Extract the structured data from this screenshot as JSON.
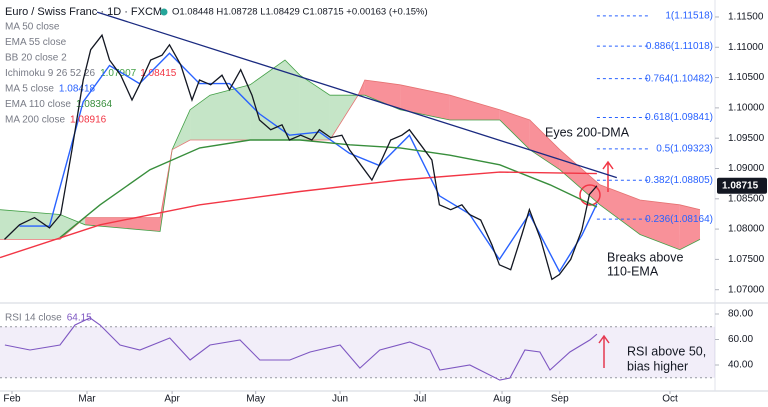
{
  "chart_data": [
    {
      "type": "line",
      "title": "Euro / Swiss Franc · 1D · FXCM",
      "quote_text": "O1.08448 H1.08728 L1.08429 C1.08715 +0.00163 (+0.15%)",
      "last_price": 1.08715,
      "xlim": [
        -3.2,
        187.5
      ],
      "ylim": [
        1.0683,
        1.1178
      ],
      "yticks": [
        {
          "value": 1.115,
          "label": "1.11500"
        },
        {
          "value": 1.11,
          "label": "1.11000"
        },
        {
          "value": 1.105,
          "label": "1.10500"
        },
        {
          "value": 1.1,
          "label": "1.10000"
        },
        {
          "value": 1.095,
          "label": "1.09500"
        },
        {
          "value": 1.09,
          "label": "1.09000"
        },
        {
          "value": 1.085,
          "label": "1.08500"
        },
        {
          "value": 1.08,
          "label": "1.08000"
        },
        {
          "value": 1.075,
          "label": "1.07500"
        },
        {
          "value": 1.07,
          "label": "1.07000"
        }
      ],
      "price": {
        "color": "#131722",
        "x": [
          -2,
          2,
          6,
          10,
          13,
          16,
          19,
          21,
          24,
          26,
          29,
          32,
          34,
          37,
          40,
          42,
          45,
          48,
          50,
          53,
          56,
          58,
          61,
          64,
          66,
          69,
          72,
          74,
          77,
          80,
          82,
          85,
          88,
          90,
          93,
          96,
          98,
          101,
          104,
          106,
          109,
          112,
          114,
          117,
          120,
          122,
          125,
          128,
          130,
          133,
          136,
          138,
          141,
          144,
          146,
          149,
          152,
          154,
          156
        ],
        "values": [
          1.0783,
          1.0807,
          1.0819,
          1.0802,
          1.0824,
          1.0931,
          1.1046,
          1.1096,
          1.112,
          1.1079,
          1.1054,
          1.1013,
          1.1038,
          1.1079,
          1.1087,
          1.1104,
          1.1071,
          1.1013,
          1.1046,
          1.1038,
          1.1054,
          1.103,
          1.1063,
          1.1021,
          1.098,
          1.0964,
          1.0972,
          1.0947,
          1.0955,
          1.0947,
          1.0964,
          1.0951,
          1.0955,
          1.0931,
          1.0906,
          1.0881,
          1.0906,
          1.0947,
          1.0955,
          1.0964,
          1.0939,
          1.0914,
          1.084,
          1.0832,
          1.084,
          1.0824,
          1.0815,
          1.0774,
          1.0741,
          1.0733,
          1.0791,
          1.0832,
          1.0783,
          1.0717,
          1.0725,
          1.075,
          1.0799,
          1.0857,
          1.08715
        ]
      },
      "indicators": [
        {
          "name": "MA 50 close"
        },
        {
          "name": "EMA 55 close"
        },
        {
          "name": "BB 20 close 2"
        },
        {
          "name": "Ichimoku 9 26 52 26",
          "values": [
            1.07907,
            1.08415
          ],
          "value_colors": [
            "#43a047",
            "#f23645"
          ]
        },
        {
          "name": "MA 5 close",
          "value": 1.08418,
          "color": "#2962ff",
          "x": [
            2,
            10,
            19,
            26,
            34,
            42,
            50,
            58,
            66,
            74,
            82,
            90,
            98,
            106,
            114,
            122,
            130,
            138,
            146,
            152,
            156
          ],
          "values": [
            1.0805,
            1.0805,
            1.101,
            1.107,
            1.104,
            1.109,
            1.104,
            1.104,
            1.099,
            1.0955,
            1.096,
            1.0925,
            1.0905,
            1.0955,
            1.0855,
            1.0825,
            1.075,
            1.0825,
            1.073,
            1.079,
            1.08418
          ]
        },
        {
          "name": "EMA 110 close",
          "value": 1.08364,
          "color": "#388e3c",
          "x": [
            12.8,
            23.5,
            36.8,
            50.1,
            63.5,
            76.8,
            90.1,
            103.5,
            116.8,
            130.1,
            143.5,
            156
          ],
          "values": [
            1.0786,
            1.084,
            1.0898,
            1.0934,
            1.0947,
            1.0947,
            1.0939,
            1.0934,
            1.0922,
            1.0906,
            1.0873,
            1.08364
          ]
        },
        {
          "name": "MA 200 close",
          "value": 1.08916,
          "color": "#f23645",
          "x": [
            -3.2,
            23.5,
            50.1,
            76.8,
            103.5,
            130.1,
            156
          ],
          "values": [
            1.0753,
            1.0807,
            1.084,
            1.0862,
            1.0881,
            1.0894,
            1.08916
          ]
        }
      ],
      "cloud": {
        "up_color": "rgba(76,175,80,0.32)",
        "down_color": "rgba(242,54,69,0.55)",
        "x": [
          -3.2,
          12.8,
          19.5,
          39.5,
          42.7,
          47.5,
          52.8,
          63.5,
          72.8,
          76.8,
          84.8,
          92.3,
          94.1,
          103.5,
          116.8,
          130.1,
          138.1,
          146.1,
          156.8,
          167.5,
          178.1,
          183.5
        ],
        "span_a": [
          1.0832,
          1.0824,
          1.0807,
          1.0796,
          1.0931,
          1.0997,
          1.1021,
          1.1038,
          1.1079,
          1.1054,
          1.1021,
          1.1021,
          1.1021,
          1.0997,
          1.098,
          1.098,
          1.0931,
          1.0898,
          1.084,
          1.0791,
          1.0766,
          1.0783
        ],
        "span_b": [
          1.0783,
          1.0783,
          1.0819,
          1.0819,
          1.0931,
          1.0947,
          1.0947,
          1.0947,
          1.0947,
          1.0947,
          1.0947,
          1.1021,
          1.1046,
          1.1038,
          1.1021,
          1.0997,
          1.098,
          1.0931,
          1.0873,
          1.0848,
          1.084,
          1.0832
        ]
      },
      "trendline": {
        "color": "#1a2a80",
        "x": [
          22.7,
          161.3
        ],
        "values": [
          1.1158,
          1.0885
        ]
      },
      "fib_color": "#2962ff",
      "fib_x": [
        156,
        170
      ],
      "fib_levels": [
        {
          "value": 1.11518,
          "label": "1(1.11518)"
        },
        {
          "value": 1.11018,
          "label": "0.886(1.11018)"
        },
        {
          "value": 1.10482,
          "label": "0.764(1.10482)"
        },
        {
          "value": 1.09841,
          "label": "0.618(1.09841)"
        },
        {
          "value": 1.09323,
          "label": "0.5(1.09323)"
        },
        {
          "value": 1.08805,
          "label": "0.382(1.08805)"
        },
        {
          "value": 1.08164,
          "label": "0.236(1.08164)"
        }
      ],
      "annotations": [
        {
          "lines": [
            "Eyes 200-DMA"
          ]
        },
        {
          "lines": [
            "Breaks above",
            "110-EMA"
          ]
        }
      ]
    },
    {
      "type": "line",
      "title": "RSI 14 close",
      "value": 64.15,
      "color": "#7e57c2",
      "xlim": [
        -3.2,
        187.5
      ],
      "ylim": [
        20.4,
        84.7
      ],
      "yticks": [
        {
          "value": 80,
          "label": "80.00"
        },
        {
          "value": 60,
          "label": "60.00"
        },
        {
          "value": 40,
          "label": "40.00"
        }
      ],
      "band": [
        70,
        30
      ],
      "xticks": [
        {
          "value": 0,
          "label": "Feb"
        },
        {
          "value": 20,
          "label": "Mar"
        },
        {
          "value": 42.7,
          "label": "Apr"
        },
        {
          "value": 65,
          "label": "May"
        },
        {
          "value": 87.5,
          "label": "Jun"
        },
        {
          "value": 108.8,
          "label": "Jul"
        },
        {
          "value": 130.7,
          "label": "Aug"
        },
        {
          "value": 146.1,
          "label": "Sep"
        },
        {
          "value": 175.5,
          "label": "Oct"
        }
      ],
      "x": [
        -1.9,
        4.8,
        12.8,
        16.8,
        20.8,
        23.5,
        28.8,
        34.1,
        42.1,
        47.5,
        52.8,
        60.8,
        66.1,
        74.1,
        79.5,
        87.5,
        92.8,
        98.1,
        106.1,
        111.5,
        114.1,
        122.1,
        130.1,
        132.8,
        136.8,
        140.8,
        143.5,
        148.8,
        154.1,
        156
      ],
      "values": [
        55.7,
        51.8,
        55.7,
        71.4,
        76.9,
        71.4,
        55.7,
        51.8,
        61.2,
        43.9,
        55.7,
        59.6,
        43.9,
        43.9,
        50.2,
        55.7,
        37.6,
        51.8,
        58.0,
        51.8,
        36.1,
        40.0,
        28.2,
        29.8,
        51.8,
        50.2,
        36.1,
        50.2,
        59.6,
        64.15
      ],
      "annotations": [
        {
          "lines": [
            "RSI above 50,",
            "bias higher"
          ]
        }
      ]
    }
  ]
}
